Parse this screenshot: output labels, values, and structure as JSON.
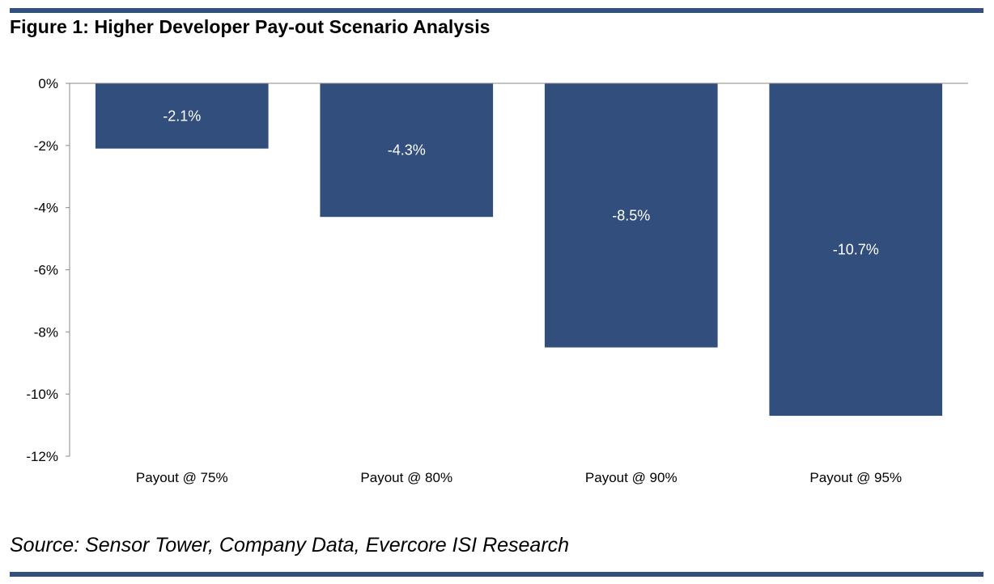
{
  "header": {
    "title": "Figure 1: Higher Developer Pay-out Scenario Analysis"
  },
  "footer": {
    "source": "Source: Sensor Tower, Company Data, Evercore ISI Research"
  },
  "colors": {
    "bar": "#324e7c",
    "rule": "#33507d",
    "axis": "#8a8a8a"
  },
  "chart_data": {
    "type": "bar",
    "title": "",
    "xlabel": "",
    "ylabel": "",
    "categories": [
      "Payout @ 75%",
      "Payout @ 80%",
      "Payout @ 90%",
      "Payout @ 95%"
    ],
    "values": [
      -2.1,
      -4.3,
      -8.5,
      -10.7
    ],
    "data_labels": [
      "-2.1%",
      "-4.3%",
      "-8.5%",
      "-10.7%"
    ],
    "ylim": [
      -12,
      0
    ],
    "y_ticks": [
      0,
      -2,
      -4,
      -6,
      -8,
      -10,
      -12
    ],
    "y_tick_labels": [
      "0%",
      "-2%",
      "-4%",
      "-6%",
      "-8%",
      "-10%",
      "-12%"
    ],
    "grid": false,
    "legend": "none"
  }
}
